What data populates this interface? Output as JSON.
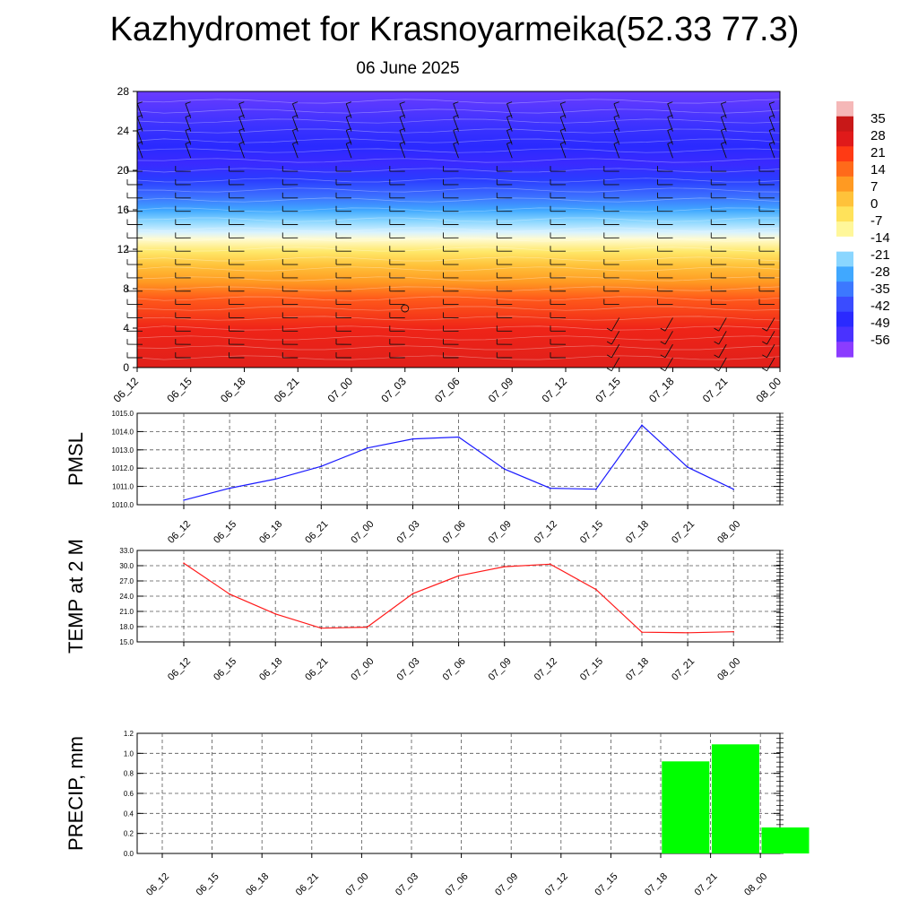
{
  "page": {
    "title": "Kazhydromet for Krasnoyarmeika(52.33 77.3)",
    "subtitle": "06 June 2025"
  },
  "colors": {
    "pmsl_line": "#1a1aff",
    "temp_line": "#ff1a1a",
    "precip_bar": "#00ff00",
    "colorbar": [
      "#8b3cff",
      "#4a32ff",
      "#2a2aff",
      "#3a4cff",
      "#3c78ff",
      "#40a8ff",
      "#8ad6ff",
      "#ffffff",
      "#fff79a",
      "#ffe25a",
      "#ffc23a",
      "#ff9a22",
      "#ff6a1a",
      "#ff3a14",
      "#e01a1a",
      "#c81818",
      "#f5b8b8"
    ]
  },
  "time_labels": [
    "06_12",
    "06_15",
    "06_18",
    "06_21",
    "07_00",
    "07_03",
    "07_06",
    "07_09",
    "07_12",
    "07_15",
    "07_18",
    "07_21",
    "08_00"
  ],
  "chart_data": [
    {
      "type": "heatmap",
      "panel": "cross-section",
      "x_categories": [
        "06_12",
        "06_15",
        "06_18",
        "06_21",
        "07_00",
        "07_03",
        "07_06",
        "07_09",
        "07_12",
        "07_15",
        "07_18",
        "07_21",
        "08_00"
      ],
      "y_ticks": [
        "0",
        "4",
        "8",
        "12",
        "16",
        "20",
        "24",
        "28"
      ],
      "ylim": [
        0,
        28
      ],
      "colorbar_labels": [
        "35",
        "28",
        "21",
        "14",
        "7",
        "0",
        "-7",
        "-14",
        "-21",
        "-28",
        "-35",
        "-42",
        "-49",
        "-56"
      ],
      "colorbar_range": [
        -63,
        42
      ]
    },
    {
      "type": "line",
      "panel": "pmsl",
      "ylabel": "PMSL",
      "x": [
        "06_12",
        "06_15",
        "06_18",
        "06_21",
        "07_00",
        "07_03",
        "07_06",
        "07_09",
        "07_12",
        "07_15",
        "07_18",
        "07_21",
        "08_00"
      ],
      "values": [
        1010.25,
        1010.9,
        1011.4,
        1012.1,
        1013.1,
        1013.6,
        1013.7,
        1011.95,
        1010.9,
        1010.85,
        1014.35,
        1012.05,
        1010.85
      ],
      "ylim": [
        1010.0,
        1015.0
      ],
      "y_ticks": [
        "1010.0",
        "1011.0",
        "1012.0",
        "1013.0",
        "1014.0",
        "1015.0"
      ]
    },
    {
      "type": "line",
      "panel": "temp",
      "ylabel": "TEMP at 2 M",
      "x": [
        "06_12",
        "06_15",
        "06_18",
        "06_21",
        "07_00",
        "07_03",
        "07_06",
        "07_09",
        "07_12",
        "07_15",
        "07_18",
        "07_21",
        "08_00"
      ],
      "values": [
        30.5,
        24.4,
        20.5,
        17.7,
        17.9,
        24.5,
        28.0,
        29.8,
        30.3,
        25.3,
        16.9,
        16.8,
        17.0
      ],
      "ylim": [
        15.0,
        33.0
      ],
      "y_ticks": [
        "15.0",
        "18.0",
        "21.0",
        "24.0",
        "27.0",
        "30.0",
        "33.0"
      ]
    },
    {
      "type": "bar",
      "panel": "precip",
      "ylabel": "PRECIP, mm",
      "categories": [
        "06_12",
        "06_15",
        "06_18",
        "06_21",
        "07_00",
        "07_03",
        "07_06",
        "07_09",
        "07_12",
        "07_15",
        "07_18",
        "07_21",
        "08_00"
      ],
      "values": [
        0,
        0,
        0,
        0,
        0,
        0,
        0,
        0,
        0,
        0,
        0.92,
        1.09,
        0.26
      ],
      "ylim": [
        0.0,
        1.2
      ],
      "y_ticks": [
        "0.0",
        "0.2",
        "0.4",
        "0.6",
        "0.8",
        "1.0",
        "1.2"
      ]
    }
  ]
}
